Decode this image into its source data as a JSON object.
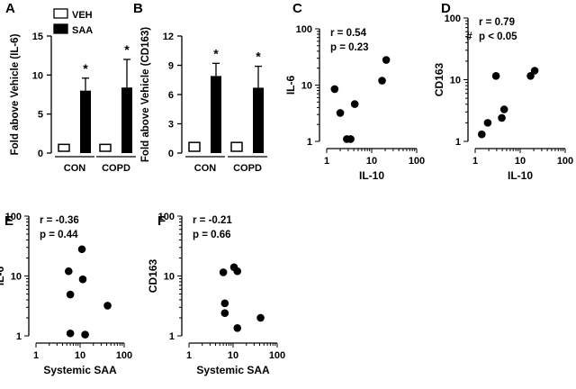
{
  "chart_data": [
    {
      "panel": "A",
      "type": "bar",
      "ylabel": "Fold above Vehicle (IL-6)",
      "ylim": [
        0,
        15
      ],
      "yticks": [
        "0",
        "5",
        "10",
        "15"
      ],
      "categories": [
        "CON",
        "COPD"
      ],
      "legend": [
        {
          "label": "VEH",
          "fill": "#ffffff"
        },
        {
          "label": "SAA",
          "fill": "#000000"
        }
      ],
      "series": [
        {
          "name": "VEH",
          "values": [
            1,
            1
          ],
          "errors": [
            0,
            0
          ]
        },
        {
          "name": "SAA",
          "values": [
            8.0,
            8.4
          ],
          "errors": [
            1.6,
            3.6
          ]
        }
      ],
      "annotations": [
        "*",
        "*"
      ]
    },
    {
      "panel": "B",
      "type": "bar",
      "ylabel": "Fold above Vehicle (CD163)",
      "ylim": [
        0,
        12
      ],
      "yticks": [
        "0",
        "3",
        "6",
        "9",
        "12"
      ],
      "categories": [
        "CON",
        "COPD"
      ],
      "series": [
        {
          "name": "VEH",
          "values": [
            1,
            1
          ],
          "errors": [
            0,
            0
          ]
        },
        {
          "name": "SAA",
          "values": [
            7.9,
            6.7
          ],
          "errors": [
            1.3,
            2.2
          ]
        }
      ],
      "annotations": [
        "*",
        "*"
      ]
    },
    {
      "panel": "C",
      "type": "scatter",
      "xlabel": "IL-10",
      "ylabel": "IL-6",
      "xscale": "log",
      "yscale": "log",
      "xlim": [
        1,
        100
      ],
      "ylim": [
        1,
        100
      ],
      "xticks": [
        "1",
        "10",
        "100"
      ],
      "yticks": [
        "1",
        "10",
        "100"
      ],
      "stats": [
        "r = 0.54",
        "p = 0.23"
      ],
      "points": [
        [
          1.5,
          8.5
        ],
        [
          2.0,
          3.2
        ],
        [
          2.8,
          1.1
        ],
        [
          3.4,
          1.1
        ],
        [
          4.2,
          4.6
        ],
        [
          17,
          12
        ],
        [
          21,
          28
        ]
      ]
    },
    {
      "panel": "D",
      "type": "scatter",
      "xlabel": "IL-10",
      "ylabel": "CD163",
      "xscale": "log",
      "yscale": "log",
      "xlim": [
        1,
        100
      ],
      "ylim": [
        1,
        100
      ],
      "xticks": [
        "1",
        "10",
        "100"
      ],
      "yticks": [
        "1",
        "10",
        "100"
      ],
      "stats": [
        "r = 0.79",
        "p < 0.05"
      ],
      "marker": "#",
      "points": [
        [
          1.4,
          1.3
        ],
        [
          1.9,
          2.0
        ],
        [
          2.9,
          11.5
        ],
        [
          3.9,
          2.4
        ],
        [
          4.4,
          3.3
        ],
        [
          17,
          11.5
        ],
        [
          21,
          14
        ]
      ]
    },
    {
      "panel": "E",
      "type": "scatter",
      "xlabel": "Systemic SAA",
      "ylabel": "IL-6",
      "xscale": "log",
      "yscale": "log",
      "xlim": [
        1,
        100
      ],
      "ylim": [
        1,
        100
      ],
      "xticks": [
        "1",
        "10",
        "100"
      ],
      "yticks": [
        "1",
        "10",
        "100"
      ],
      "stats": [
        "r = -0.36",
        "p = 0.44"
      ],
      "points": [
        [
          5.5,
          12
        ],
        [
          6.0,
          4.9
        ],
        [
          6.0,
          1.1
        ],
        [
          11,
          28
        ],
        [
          11.5,
          8.8
        ],
        [
          13,
          1.05
        ],
        [
          42,
          3.2
        ]
      ]
    },
    {
      "panel": "F",
      "type": "scatter",
      "xlabel": "Systemic SAA",
      "ylabel": "CD163",
      "xscale": "log",
      "yscale": "log",
      "xlim": [
        1,
        100
      ],
      "ylim": [
        1,
        100
      ],
      "xticks": [
        "1",
        "10",
        "100"
      ],
      "yticks": [
        "1",
        "10",
        "100"
      ],
      "stats": [
        "r = -0.21",
        "p = 0.66"
      ],
      "points": [
        [
          6.0,
          11.5
        ],
        [
          6.5,
          3.5
        ],
        [
          6.5,
          2.4
        ],
        [
          10.5,
          14
        ],
        [
          12.5,
          12
        ],
        [
          12.5,
          1.35
        ],
        [
          42,
          2.0
        ]
      ]
    }
  ]
}
